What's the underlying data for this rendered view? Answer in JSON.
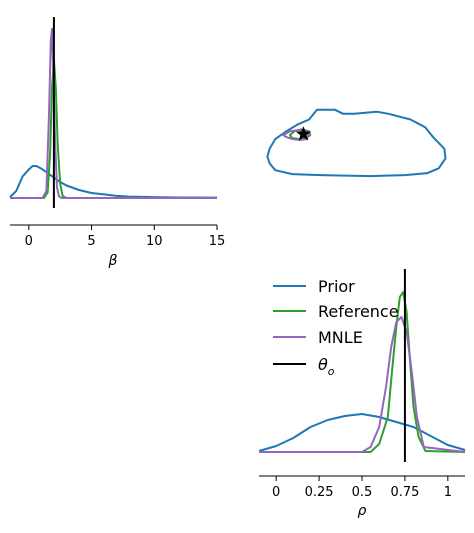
{
  "chart_data": [
    {
      "type": "line",
      "panel": "beta-marginal",
      "xlabel": "β",
      "xlim": [
        -1.5,
        15
      ],
      "x_ticks": [
        "0",
        "5",
        "10",
        "15"
      ],
      "x_tick_values": [
        0,
        5,
        10,
        15
      ],
      "true_value": 2.0,
      "series": [
        {
          "name": "Prior",
          "color": "#1f77b4",
          "x": [
            -1.5,
            -1.0,
            -0.5,
            0.0,
            0.3,
            0.6,
            1.0,
            1.5,
            2.0,
            2.5,
            3.0,
            4.0,
            5.0,
            6.0,
            7.0,
            8.0,
            9.0,
            10.0,
            12.0,
            15.0
          ],
          "y": [
            0.005,
            0.04,
            0.12,
            0.16,
            0.18,
            0.18,
            0.165,
            0.14,
            0.115,
            0.09,
            0.07,
            0.045,
            0.028,
            0.02,
            0.012,
            0.008,
            0.006,
            0.005,
            0.003,
            0.002
          ]
        },
        {
          "name": "Reference",
          "color": "#2ca02c",
          "x": [
            -1.5,
            1.2,
            1.5,
            1.7,
            1.85,
            2.0,
            2.15,
            2.3,
            2.5,
            2.7,
            3.0,
            15.0
          ],
          "y": [
            0.0,
            0.0,
            0.03,
            0.25,
            0.62,
            0.78,
            0.62,
            0.3,
            0.08,
            0.01,
            0.0,
            0.0
          ]
        },
        {
          "name": "MNLE",
          "color": "#9467bd",
          "x": [
            -1.5,
            1.1,
            1.4,
            1.6,
            1.75,
            1.85,
            1.95,
            2.1,
            2.25,
            2.4,
            2.6,
            15.0
          ],
          "y": [
            0.0,
            0.0,
            0.04,
            0.45,
            0.88,
            0.95,
            0.7,
            0.3,
            0.06,
            0.01,
            0.0,
            0.0
          ]
        }
      ]
    },
    {
      "type": "line",
      "panel": "joint-contour",
      "xlim": [
        -1.5,
        15
      ],
      "ylim": [
        -0.1,
        1.1
      ],
      "true_point": [
        2.0,
        0.75
      ],
      "series": [
        {
          "name": "Prior",
          "color": "#1f77b4",
          "x": [
            3.2,
            4.8,
            5.5,
            6.5,
            8.5,
            9.5,
            11.5,
            12.8,
            13.5,
            14.5,
            14.6,
            14.0,
            13.0,
            11.0,
            8.0,
            3.5,
            1.0,
            -0.5,
            -1.0,
            -1.2,
            -1.0,
            -0.5,
            0.5,
            1.5,
            2.5,
            3.2
          ],
          "y": [
            1.0,
            1.0,
            0.96,
            0.96,
            0.98,
            0.96,
            0.9,
            0.82,
            0.72,
            0.6,
            0.5,
            0.4,
            0.35,
            0.33,
            0.32,
            0.33,
            0.34,
            0.38,
            0.45,
            0.52,
            0.6,
            0.7,
            0.78,
            0.85,
            0.9,
            1.0
          ]
        },
        {
          "name": "Reference",
          "color": "#2ca02c",
          "x": [
            0.8,
            1.2,
            1.8,
            2.5,
            2.6,
            2.2,
            1.6,
            1.0,
            0.8
          ],
          "y": [
            0.74,
            0.78,
            0.8,
            0.78,
            0.74,
            0.71,
            0.7,
            0.71,
            0.74
          ]
        },
        {
          "name": "MNLE",
          "color": "#9467bd",
          "x": [
            0.2,
            0.8,
            1.5,
            2.3,
            2.5,
            2.3,
            1.7,
            1.0,
            0.5,
            0.2
          ],
          "y": [
            0.74,
            0.78,
            0.79,
            0.78,
            0.75,
            0.7,
            0.69,
            0.7,
            0.72,
            0.74
          ]
        }
      ]
    },
    {
      "type": "line",
      "panel": "rho-marginal",
      "xlabel": "ρ",
      "xlim": [
        -0.1,
        1.1
      ],
      "x_ticks": [
        "0",
        "0.25",
        "0.5",
        "0.75",
        "1"
      ],
      "x_tick_values": [
        0,
        0.25,
        0.5,
        0.75,
        1.0
      ],
      "true_value": 0.75,
      "series": [
        {
          "name": "Prior",
          "color": "#1f77b4",
          "x": [
            -0.1,
            0.0,
            0.1,
            0.2,
            0.3,
            0.4,
            0.5,
            0.6,
            0.7,
            0.8,
            0.9,
            1.0,
            1.1
          ],
          "y": [
            0.01,
            0.06,
            0.14,
            0.25,
            0.32,
            0.36,
            0.38,
            0.35,
            0.3,
            0.25,
            0.16,
            0.07,
            0.02
          ]
        },
        {
          "name": "Reference",
          "color": "#2ca02c",
          "x": [
            -0.1,
            0.55,
            0.6,
            0.65,
            0.68,
            0.7,
            0.72,
            0.74,
            0.76,
            0.78,
            0.8,
            0.83,
            0.87,
            1.1
          ],
          "y": [
            0.0,
            0.0,
            0.08,
            0.35,
            0.9,
            1.25,
            1.55,
            1.6,
            1.4,
            0.9,
            0.45,
            0.15,
            0.01,
            0.0
          ]
        },
        {
          "name": "MNLE",
          "color": "#9467bd",
          "x": [
            -0.1,
            0.5,
            0.55,
            0.6,
            0.64,
            0.67,
            0.7,
            0.73,
            0.76,
            0.79,
            0.82,
            0.86,
            1.1
          ],
          "y": [
            0.0,
            0.0,
            0.05,
            0.25,
            0.65,
            1.05,
            1.3,
            1.35,
            1.2,
            0.8,
            0.35,
            0.05,
            0.0
          ]
        }
      ]
    }
  ],
  "legend": {
    "placement": "lower-left",
    "entries": [
      {
        "label": "Prior",
        "color": "#1f77b4"
      },
      {
        "label": "Reference",
        "color": "#2ca02c"
      },
      {
        "label": "MNLE",
        "color": "#9467bd"
      },
      {
        "label": "θ",
        "sub": "o",
        "color": "#000000"
      }
    ]
  }
}
